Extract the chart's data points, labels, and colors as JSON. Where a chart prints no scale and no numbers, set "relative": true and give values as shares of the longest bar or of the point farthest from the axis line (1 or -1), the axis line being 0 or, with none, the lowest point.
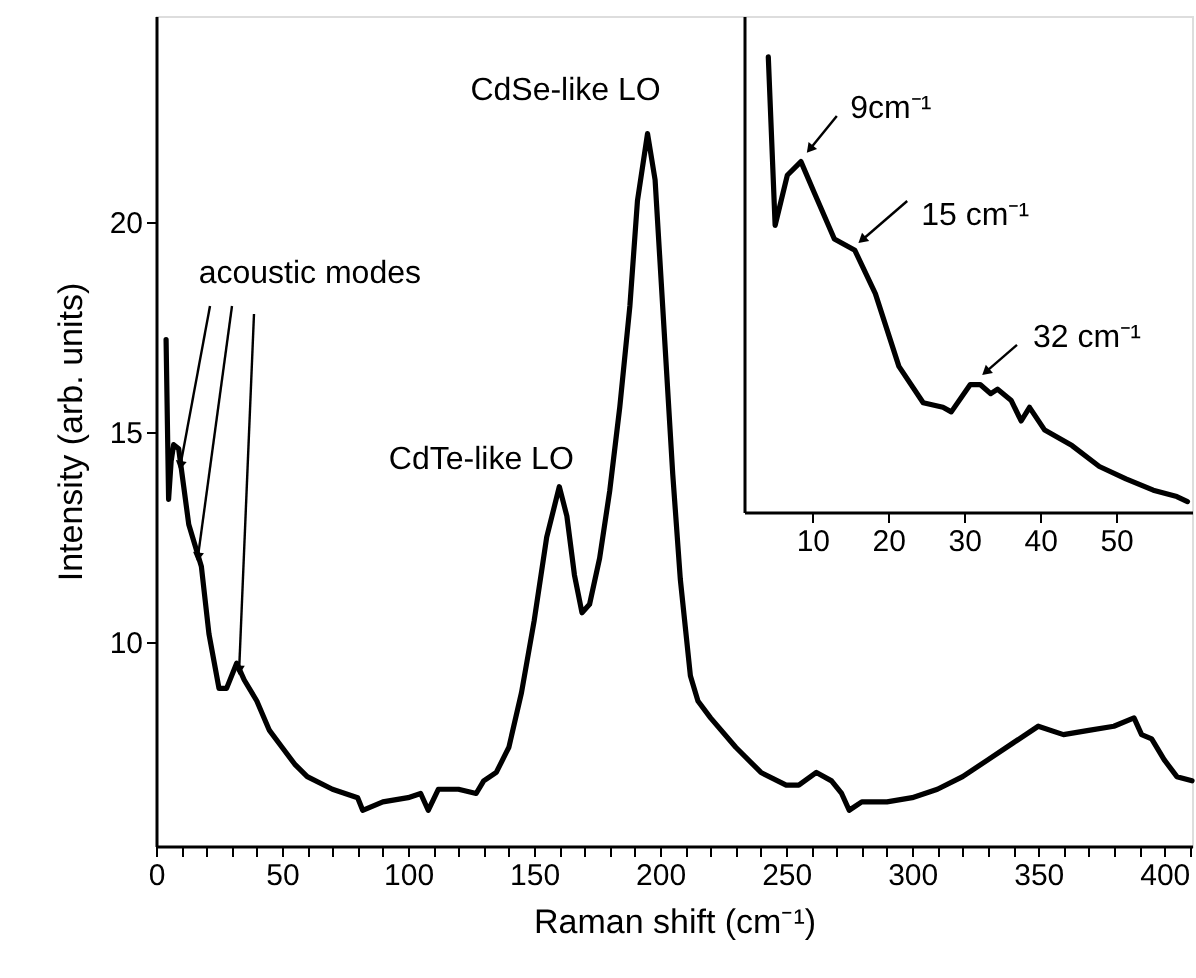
{
  "chart_data": [
    {
      "type": "line",
      "xlabel": "Raman shift (cm⁻¹)",
      "ylabel": "Intensity (arb. units)",
      "xlim": [
        0,
        411
      ],
      "ylim": [
        5.15,
        24.9
      ],
      "xticks": [
        0,
        {
          "value": 10,
          "label": null
        },
        {
          "value": 20,
          "label": null
        },
        {
          "value": 30,
          "label": null
        },
        {
          "value": 40,
          "label": null
        },
        50,
        {
          "value": 60,
          "label": null
        },
        {
          "value": 70,
          "label": null
        },
        {
          "value": 80,
          "label": null
        },
        {
          "value": 90,
          "label": null
        },
        100,
        {
          "value": 110,
          "label": null
        },
        {
          "value": 120,
          "label": null
        },
        {
          "value": 130,
          "label": null
        },
        {
          "value": 140,
          "label": null
        },
        150,
        {
          "value": 160,
          "label": null
        },
        {
          "value": 170,
          "label": null
        },
        {
          "value": 180,
          "label": null
        },
        {
          "value": 190,
          "label": null
        },
        200,
        {
          "value": 210,
          "label": null
        },
        {
          "value": 220,
          "label": null
        },
        {
          "value": 230,
          "label": null
        },
        {
          "value": 240,
          "label": null
        },
        250,
        {
          "value": 260,
          "label": null
        },
        {
          "value": 270,
          "label": null
        },
        {
          "value": 280,
          "label": null
        },
        {
          "value": 290,
          "label": null
        },
        300,
        {
          "value": 310,
          "label": null
        },
        {
          "value": 320,
          "label": null
        },
        {
          "value": 330,
          "label": null
        },
        {
          "value": 340,
          "label": null
        },
        350,
        {
          "value": 360,
          "label": null
        },
        {
          "value": 370,
          "label": null
        },
        {
          "value": 380,
          "label": null
        },
        {
          "value": 390,
          "label": null
        },
        400,
        {
          "value": 410,
          "label": null
        }
      ],
      "yticks": [
        10,
        15,
        20
      ],
      "grid": false,
      "series": [
        {
          "color": "#000000",
          "x": [
            4,
            5,
            6,
            7,
            9,
            11,
            13,
            15,
            18,
            21,
            25,
            28,
            32,
            35,
            40,
            45,
            50,
            55,
            60,
            70,
            80,
            82,
            90,
            100,
            105,
            108,
            112,
            120,
            127,
            130,
            135,
            140,
            145,
            150,
            155,
            160,
            163,
            166,
            169,
            172,
            176,
            180,
            184,
            188,
            191,
            195,
            198,
            201,
            205,
            208,
            212,
            215,
            220,
            230,
            240,
            250,
            255,
            262,
            268,
            272,
            275,
            280,
            290,
            300,
            310,
            320,
            330,
            340,
            350,
            360,
            370,
            380,
            388,
            391,
            395,
            400,
            405,
            411
          ],
          "values": [
            17.2,
            13.4,
            14.3,
            14.7,
            14.6,
            13.7,
            12.8,
            12.4,
            11.8,
            10.2,
            8.9,
            8.9,
            9.5,
            9.1,
            8.6,
            7.9,
            7.5,
            7.1,
            6.8,
            6.5,
            6.3,
            6.0,
            6.2,
            6.3,
            6.4,
            6.0,
            6.5,
            6.5,
            6.4,
            6.7,
            6.9,
            7.5,
            8.8,
            10.5,
            12.5,
            13.7,
            13.0,
            11.6,
            10.7,
            10.9,
            12.0,
            13.6,
            15.6,
            18.0,
            20.5,
            22.1,
            21.0,
            18.0,
            14.0,
            11.5,
            9.2,
            8.6,
            8.2,
            7.5,
            6.9,
            6.6,
            6.6,
            6.9,
            6.7,
            6.4,
            6.0,
            6.2,
            6.2,
            6.3,
            6.5,
            6.8,
            7.2,
            7.6,
            8.0,
            7.8,
            7.9,
            8.0,
            8.2,
            7.8,
            7.7,
            7.2,
            6.8,
            6.7
          ]
        }
      ],
      "annotations": [
        {
          "text": "acoustic modes",
          "x": 15,
          "y": 12.4
        },
        {
          "text": "CdTe-like LO",
          "x": 160,
          "y": 13.7
        },
        {
          "text": "CdSe-like LO",
          "x": 195,
          "y": 22.1
        }
      ]
    },
    {
      "type": "line",
      "relative": true,
      "tick_labels": "x",
      "xlim": [
        1,
        60
      ],
      "xticks": [
        10,
        20,
        30,
        40,
        50
      ],
      "grid": false,
      "series": [
        {
          "color": "#000000",
          "x": [
            4.2,
            5.1,
            6.7,
            8.5,
            10.3,
            12.9,
            15.6,
            18.3,
            21.4,
            24.6,
            27.2,
            28.3,
            30.8,
            32.1,
            33.5,
            34.4,
            36.2,
            37.5,
            38.6,
            40.6,
            44.2,
            47.8,
            51.3,
            54.9,
            58.0,
            59.4
          ],
          "values": [
            1.0,
            0.63,
            0.74,
            0.77,
            0.7,
            0.6,
            0.575,
            0.48,
            0.32,
            0.24,
            0.23,
            0.22,
            0.28,
            0.28,
            0.26,
            0.27,
            0.245,
            0.2,
            0.23,
            0.18,
            0.146,
            0.1,
            0.073,
            0.048,
            0.034,
            0.023
          ]
        }
      ],
      "annotations": [
        {
          "text": "9cm⁻¹",
          "x": 9.8,
          "y": 0.8
        },
        {
          "text": "15 cm⁻¹",
          "x": 16.7,
          "y": 0.6
        },
        {
          "text": "32 cm⁻¹",
          "x": 33.0,
          "y": 0.31
        }
      ]
    }
  ]
}
